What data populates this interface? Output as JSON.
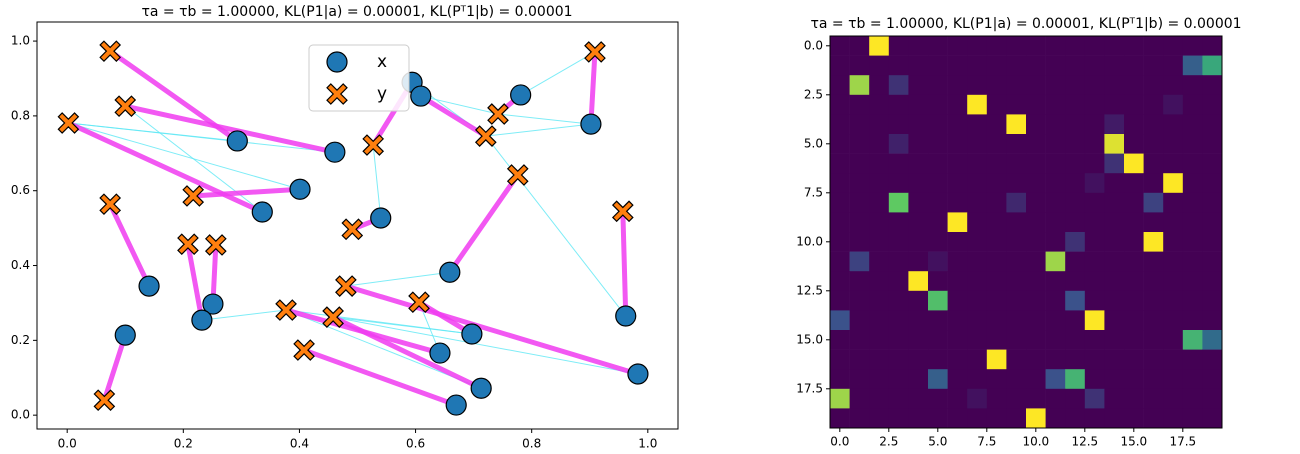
{
  "chart_data": [
    {
      "type": "scatter",
      "title": "τa = τb = 1.00000, KL(P1|a) = 0.00001, KL(Pᵀ1|b) = 0.00001",
      "xlim": [
        -0.052,
        1.052
      ],
      "ylim": [
        -0.037,
        1.051
      ],
      "xticks": [
        {
          "value": 0,
          "label": "0.0"
        },
        0.2,
        0.4,
        0.6,
        0.8,
        {
          "value": 1,
          "label": "1.0"
        }
      ],
      "yticks": [
        {
          "value": 0,
          "label": "0.0"
        },
        0.2,
        0.4,
        0.6,
        0.8,
        {
          "value": 1,
          "label": "1.0"
        }
      ],
      "legend": "upper center",
      "series": [
        {
          "name": "x",
          "color": "#1f77b4",
          "marker": "circle",
          "x": [
            0.293,
            0.461,
            0.401,
            0.336,
            0.54,
            0.594,
            0.609,
            0.781,
            0.902,
            0.659,
            0.141,
            0.251,
            0.232,
            0.697,
            0.642,
            0.962,
            0.983,
            0.713,
            0.67,
            0.1
          ],
          "y": [
            0.733,
            0.703,
            0.604,
            0.543,
            0.527,
            0.89,
            0.853,
            0.856,
            0.778,
            0.382,
            0.345,
            0.297,
            0.254,
            0.217,
            0.166,
            0.265,
            0.11,
            0.072,
            0.027,
            0.214
          ]
        },
        {
          "name": "y",
          "color": "#ff7f0e",
          "marker": "x",
          "x": [
            0.074,
            0.1,
            0.002,
            0.217,
            0.074,
            0.208,
            0.256,
            0.527,
            0.491,
            0.721,
            0.742,
            0.909,
            0.776,
            0.957,
            0.48,
            0.606,
            0.377,
            0.458,
            0.408,
            0.064
          ],
          "y": [
            0.973,
            0.826,
            0.781,
            0.586,
            0.564,
            0.457,
            0.455,
            0.722,
            0.497,
            0.746,
            0.805,
            0.971,
            0.642,
            0.545,
            0.345,
            0.302,
            0.281,
            0.262,
            0.174,
            0.04
          ]
        }
      ],
      "links": [
        [
          0,
          0
        ],
        [
          1,
          1
        ],
        [
          3,
          2
        ],
        [
          2,
          3
        ],
        [
          10,
          4
        ],
        [
          12,
          5
        ],
        [
          11,
          6
        ],
        [
          5,
          7
        ],
        [
          4,
          8
        ],
        [
          6,
          9
        ],
        [
          7,
          10
        ],
        [
          8,
          11
        ],
        [
          9,
          12
        ],
        [
          15,
          13
        ],
        [
          16,
          14
        ],
        [
          13,
          15
        ],
        [
          14,
          16
        ],
        [
          17,
          17
        ],
        [
          18,
          18
        ],
        [
          19,
          19
        ]
      ],
      "link_color": "#f03cf0",
      "weak_links": [
        [
          0,
          2
        ],
        [
          1,
          2
        ],
        [
          2,
          2
        ],
        [
          3,
          1
        ],
        [
          4,
          7
        ],
        [
          8,
          10
        ],
        [
          8,
          9
        ],
        [
          9,
          14
        ],
        [
          15,
          9
        ],
        [
          12,
          16
        ],
        [
          13,
          17
        ],
        [
          16,
          17
        ],
        [
          17,
          16
        ],
        [
          5,
          9
        ],
        [
          7,
          11
        ],
        [
          14,
          15
        ],
        [
          13,
          16
        ],
        [
          6,
          10
        ]
      ],
      "weak_link_color": "#5ee8f5"
    },
    {
      "type": "heatmap",
      "title": "τa = τb = 1.00000, KL(P1|a) = 0.00001, KL(Pᵀ1|b) = 0.00001",
      "colormap": "viridis",
      "xticks": [
        {
          "value": 0,
          "label": "0.0"
        },
        2.5,
        {
          "value": 5,
          "label": "5.0"
        },
        7.5,
        {
          "value": 10,
          "label": "10.0"
        },
        12.5,
        {
          "value": 15,
          "label": "15.0"
        },
        17.5
      ],
      "yticks": [
        {
          "value": 0,
          "label": "0.0"
        },
        2.5,
        {
          "value": 5,
          "label": "5.0"
        },
        7.5,
        {
          "value": 10,
          "label": "10.0"
        },
        12.5,
        {
          "value": 15,
          "label": "15.0"
        },
        17.5
      ],
      "values": [
        [
          0,
          0,
          1,
          0,
          0,
          0,
          0,
          0,
          0,
          0,
          0,
          0,
          0,
          0,
          0,
          0,
          0,
          0,
          0,
          0
        ],
        [
          0,
          0,
          0,
          0,
          0,
          0,
          0,
          0,
          0,
          0,
          0,
          0,
          0,
          0,
          0,
          0,
          0,
          0,
          0.3,
          0.6
        ],
        [
          0,
          0.85,
          0,
          0.15,
          0,
          0,
          0,
          0,
          0,
          0,
          0,
          0,
          0,
          0,
          0,
          0,
          0,
          0,
          0,
          0
        ],
        [
          0,
          0,
          0,
          0,
          0,
          0,
          0,
          1,
          0,
          0,
          0,
          0,
          0,
          0,
          0,
          0,
          0,
          0.05,
          0,
          0
        ],
        [
          0,
          0,
          0,
          0,
          0,
          0,
          0,
          0,
          0,
          1,
          0,
          0,
          0,
          0,
          0.08,
          0,
          0,
          0,
          0,
          0
        ],
        [
          0,
          0,
          0,
          0.1,
          0,
          0,
          0,
          0,
          0,
          0,
          0,
          0,
          0,
          0,
          0.95,
          0,
          0,
          0,
          0,
          0
        ],
        [
          0,
          0,
          0,
          0,
          0,
          0,
          0,
          0,
          0,
          0,
          0,
          0,
          0,
          0,
          0.15,
          1,
          0,
          0,
          0,
          0
        ],
        [
          0,
          0,
          0,
          0,
          0,
          0,
          0,
          0,
          0,
          0,
          0,
          0,
          0,
          0.05,
          0,
          0,
          0,
          1,
          0,
          0
        ],
        [
          0,
          0,
          0,
          0.75,
          0,
          0,
          0,
          0,
          0,
          0.12,
          0,
          0,
          0,
          0,
          0,
          0,
          0.2,
          0,
          0,
          0
        ],
        [
          0,
          0,
          0,
          0,
          0,
          0,
          1,
          0,
          0,
          0,
          0,
          0,
          0,
          0,
          0,
          0,
          0,
          0,
          0,
          0
        ],
        [
          0,
          0,
          0,
          0,
          0,
          0,
          0,
          0,
          0,
          0,
          0,
          0,
          0.15,
          0,
          0,
          0,
          1,
          0,
          0,
          0
        ],
        [
          0,
          0.2,
          0,
          0,
          0,
          0.05,
          0,
          0,
          0,
          0,
          0,
          0.85,
          0,
          0,
          0,
          0,
          0,
          0,
          0,
          0
        ],
        [
          0,
          0,
          0,
          0,
          1,
          0,
          0,
          0,
          0,
          0,
          0,
          0,
          0,
          0,
          0,
          0,
          0,
          0,
          0,
          0
        ],
        [
          0,
          0,
          0,
          0,
          0,
          0.7,
          0,
          0,
          0,
          0,
          0,
          0,
          0.25,
          0,
          0,
          0,
          0,
          0,
          0,
          0
        ],
        [
          0.25,
          0,
          0,
          0,
          0,
          0,
          0,
          0,
          0,
          0,
          0,
          0,
          0,
          1,
          0,
          0,
          0,
          0,
          0,
          0
        ],
        [
          0,
          0,
          0,
          0,
          0,
          0,
          0,
          0,
          0,
          0,
          0,
          0,
          0,
          0,
          0,
          0,
          0,
          0,
          0.65,
          0.35
        ],
        [
          0,
          0,
          0,
          0,
          0,
          0,
          0,
          0,
          1,
          0,
          0,
          0,
          0,
          0,
          0,
          0,
          0,
          0,
          0,
          0
        ],
        [
          0,
          0,
          0,
          0,
          0,
          0.3,
          0,
          0,
          0,
          0,
          0,
          0.25,
          0.65,
          0,
          0,
          0,
          0,
          0,
          0,
          0
        ],
        [
          0.85,
          0,
          0,
          0,
          0,
          0,
          0,
          0.05,
          0,
          0,
          0,
          0,
          0,
          0.15,
          0,
          0,
          0,
          0,
          0,
          0
        ],
        [
          0,
          0,
          0,
          0,
          0,
          0,
          0,
          0,
          0,
          0,
          1,
          0,
          0,
          0,
          0,
          0,
          0,
          0,
          0,
          0
        ]
      ]
    }
  ]
}
